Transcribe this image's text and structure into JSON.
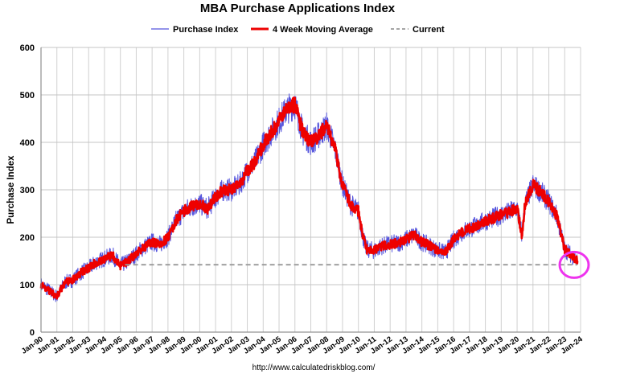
{
  "chart_data": {
    "type": "line",
    "title": "MBA Purchase Applications Index",
    "ylabel": "Purchase Index",
    "xlabel": "",
    "ylim": [
      0,
      600
    ],
    "y_ticks": [
      0,
      100,
      200,
      300,
      400,
      500,
      600
    ],
    "x_ticks": [
      "Jan-90",
      "Jan-91",
      "Jan-92",
      "Jan-93",
      "Jan-94",
      "Jan-95",
      "Jan-96",
      "Jan-97",
      "Jan-98",
      "Jan-99",
      "Jan-00",
      "Jan-01",
      "Jan-02",
      "Jan-03",
      "Jan-04",
      "Jan-05",
      "Jan-06",
      "Jan-07",
      "Jan-08",
      "Jan-09",
      "Jan-10",
      "Jan-11",
      "Jan-12",
      "Jan-13",
      "Jan-14",
      "Jan-15",
      "Jan-16",
      "Jan-17",
      "Jan-18",
      "Jan-19",
      "Jan-20",
      "Jan-21",
      "Jan-22",
      "Jan-23",
      "Jan-24"
    ],
    "legend_position": "top-center",
    "grid": true,
    "x_unit": "year",
    "series": [
      {
        "name": "Purchase Index",
        "color": "#5555dd",
        "x": [
          1990.0,
          1990.5,
          1991.0,
          1991.5,
          1992.0,
          1992.5,
          1993.0,
          1993.5,
          1994.0,
          1994.5,
          1995.0,
          1995.5,
          1996.0,
          1996.5,
          1997.0,
          1997.5,
          1998.0,
          1998.5,
          1999.0,
          1999.5,
          2000.0,
          2000.5,
          2001.0,
          2001.5,
          2002.0,
          2002.5,
          2003.0,
          2003.5,
          2004.0,
          2004.5,
          2005.0,
          2005.5,
          2006.0,
          2006.5,
          2007.0,
          2007.5,
          2008.0,
          2008.5,
          2009.0,
          2009.5,
          2010.0,
          2010.3,
          2010.5,
          2011.0,
          2011.5,
          2012.0,
          2012.5,
          2013.0,
          2013.5,
          2014.0,
          2014.5,
          2015.0,
          2015.5,
          2016.0,
          2016.5,
          2017.0,
          2017.5,
          2018.0,
          2018.5,
          2019.0,
          2019.5,
          2020.0,
          2020.3,
          2020.5,
          2021.0,
          2021.5,
          2022.0,
          2022.5,
          2023.0,
          2023.5,
          2023.8
        ],
        "y": [
          100,
          88,
          75,
          105,
          110,
          125,
          135,
          148,
          155,
          162,
          140,
          150,
          165,
          180,
          190,
          185,
          200,
          235,
          255,
          265,
          270,
          260,
          285,
          300,
          300,
          310,
          340,
          360,
          395,
          420,
          445,
          470,
          480,
          420,
          400,
          415,
          435,
          390,
          310,
          270,
          255,
          200,
          175,
          172,
          182,
          185,
          188,
          195,
          205,
          190,
          182,
          172,
          168,
          195,
          210,
          218,
          225,
          235,
          240,
          248,
          252,
          262,
          205,
          270,
          310,
          295,
          275,
          245,
          175,
          160,
          150
        ],
        "noise": 18
      },
      {
        "name": "4 Week Moving Average",
        "color": "#ee0000",
        "x": [
          1990.0,
          1990.5,
          1991.0,
          1991.5,
          1992.0,
          1992.5,
          1993.0,
          1993.5,
          1994.0,
          1994.5,
          1995.0,
          1995.5,
          1996.0,
          1996.5,
          1997.0,
          1997.5,
          1998.0,
          1998.5,
          1999.0,
          1999.5,
          2000.0,
          2000.5,
          2001.0,
          2001.5,
          2002.0,
          2002.5,
          2003.0,
          2003.5,
          2004.0,
          2004.5,
          2005.0,
          2005.5,
          2006.0,
          2006.5,
          2007.0,
          2007.5,
          2008.0,
          2008.5,
          2009.0,
          2009.5,
          2010.0,
          2010.3,
          2010.5,
          2011.0,
          2011.5,
          2012.0,
          2012.5,
          2013.0,
          2013.5,
          2014.0,
          2014.5,
          2015.0,
          2015.5,
          2016.0,
          2016.5,
          2017.0,
          2017.5,
          2018.0,
          2018.5,
          2019.0,
          2019.5,
          2020.0,
          2020.3,
          2020.5,
          2021.0,
          2021.5,
          2022.0,
          2022.5,
          2023.0,
          2023.5,
          2023.8
        ],
        "y": [
          100,
          88,
          75,
          105,
          110,
          125,
          135,
          148,
          155,
          162,
          140,
          150,
          165,
          180,
          190,
          185,
          200,
          235,
          255,
          265,
          270,
          260,
          285,
          300,
          300,
          310,
          340,
          360,
          395,
          420,
          445,
          470,
          480,
          420,
          400,
          415,
          435,
          390,
          310,
          270,
          255,
          200,
          175,
          172,
          182,
          185,
          188,
          195,
          205,
          190,
          182,
          172,
          168,
          195,
          210,
          218,
          225,
          235,
          240,
          248,
          252,
          262,
          205,
          270,
          310,
          295,
          275,
          245,
          175,
          160,
          150
        ],
        "noise": 9
      },
      {
        "name": "Current",
        "color": "#999999",
        "dashed": true,
        "x": [
          1995.3,
          2023.8
        ],
        "y": [
          142,
          142
        ]
      }
    ],
    "annotations": [
      {
        "type": "circle",
        "color": "#ee33ee",
        "x": 2023.9,
        "y": 140
      }
    ]
  },
  "source_text": "http://www.calculatedriskblog.com/"
}
